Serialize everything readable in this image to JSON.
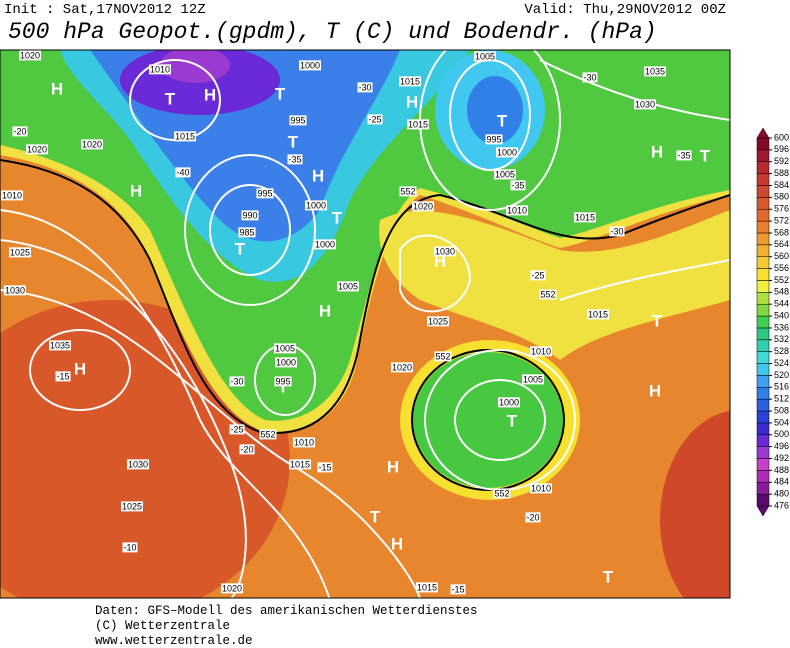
{
  "header": {
    "init": "Init : Sat,17NOV2012 12Z",
    "valid": "Valid: Thu,29NOV2012 00Z",
    "title": "500 hPa Geopot.(gpdm), T (C) und Bodendr. (hPa)"
  },
  "map": {
    "pressure_centers": [
      "H",
      "T",
      "H",
      "T",
      "H",
      "T",
      "H",
      "T",
      "T",
      "H",
      "T",
      "H",
      "T",
      "H",
      "H",
      "H",
      "T",
      "T",
      "H",
      "T",
      "H",
      "T",
      "H",
      "T"
    ],
    "contour_labels": [
      "1020",
      "1010",
      "1000",
      "1015",
      "1005",
      "1035",
      "1030",
      "-30",
      "-30",
      "1015",
      "995",
      "-35",
      "-40",
      "995",
      "990",
      "985",
      "1000",
      "1000",
      "-25",
      "1015",
      "995",
      "1000",
      "1005",
      "-35",
      "1010",
      "1015",
      "-30",
      "-35",
      "1020",
      "552",
      "1030",
      "-25",
      "552",
      "1015",
      "1005",
      "1025",
      "1005",
      "1000",
      "995",
      "-30",
      "552",
      "1020",
      "1010",
      "1005",
      "1000",
      "1035",
      "-15",
      "-25",
      "-20",
      "552",
      "1010",
      "1015",
      "-15",
      "1030",
      "1025",
      "-10",
      "552",
      "1010",
      "-20",
      "1020",
      "1015",
      "-15",
      "1025",
      "1030",
      "1020",
      "1020",
      "1010",
      "-20"
    ]
  },
  "colorbar": {
    "levels": [
      476,
      480,
      484,
      488,
      492,
      496,
      500,
      504,
      508,
      512,
      516,
      520,
      524,
      528,
      532,
      536,
      540,
      544,
      548,
      552,
      556,
      560,
      564,
      568,
      572,
      576,
      580,
      584,
      588,
      592,
      596,
      600
    ],
    "colors": [
      "#5a0a6e",
      "#8a1a9c",
      "#b02ab8",
      "#c640c8",
      "#9a3ad0",
      "#6a2ad8",
      "#3a2ad0",
      "#2a40d8",
      "#2a60e0",
      "#3080e8",
      "#40a0f0",
      "#40c8f0",
      "#40d8d8",
      "#30d0b0",
      "#30c880",
      "#40d050",
      "#80d840",
      "#b0e040",
      "#f0f040",
      "#f8e030",
      "#f8c830",
      "#f0b030",
      "#f09830",
      "#e88030",
      "#e06830",
      "#d85830",
      "#d04830",
      "#c83830",
      "#b82830",
      "#a01830",
      "#880828"
    ]
  },
  "footer": [
    "Daten: GFS–Modell des amerikanischen Wetterdienstes",
    "(C) Wetterzentrale",
    "www.wetterzentrale.de"
  ]
}
